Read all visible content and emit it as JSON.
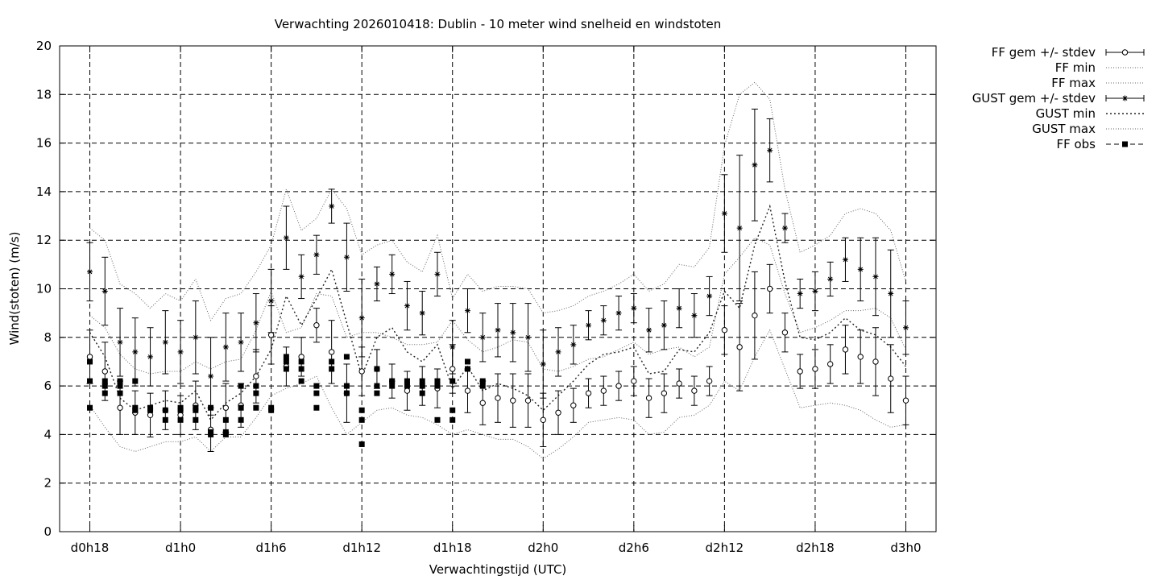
{
  "chart_data": {
    "type": "line",
    "title": "Verwachting 2026010418: Dublin - 10 meter wind snelheid en windstoten",
    "xlabel": "Verwachtingstijd (UTC)",
    "ylabel": "Wind(stoten) (m/s)",
    "ylim": [
      0,
      20
    ],
    "xlim_hours": [
      -2,
      56
    ],
    "grid": true,
    "legend_position": "outside-right-top",
    "x_ticks": [
      {
        "hour": 0,
        "label": "d0h18"
      },
      {
        "hour": 6,
        "label": "d1h0"
      },
      {
        "hour": 12,
        "label": "d1h6"
      },
      {
        "hour": 18,
        "label": "d1h12"
      },
      {
        "hour": 24,
        "label": "d1h18"
      },
      {
        "hour": 30,
        "label": "d2h0"
      },
      {
        "hour": 36,
        "label": "d2h6"
      },
      {
        "hour": 42,
        "label": "d2h12"
      },
      {
        "hour": 48,
        "label": "d2h18"
      },
      {
        "hour": 54,
        "label": "d3h0"
      }
    ],
    "y_ticks": [
      0,
      2,
      4,
      6,
      8,
      10,
      12,
      14,
      16,
      18,
      20
    ],
    "legend": [
      {
        "key": "ff_mean",
        "label": "FF gem +/- stdev"
      },
      {
        "key": "ff_min",
        "label": "FF min"
      },
      {
        "key": "ff_max",
        "label": "FF max"
      },
      {
        "key": "gust_mean",
        "label": "GUST gem +/- stdev"
      },
      {
        "key": "gust_min",
        "label": "GUST min"
      },
      {
        "key": "gust_max",
        "label": "GUST max"
      },
      {
        "key": "ff_obs",
        "label": "FF obs"
      }
    ],
    "x_hours": [
      0,
      1,
      2,
      3,
      4,
      5,
      6,
      7,
      8,
      9,
      10,
      11,
      12,
      13,
      14,
      15,
      16,
      17,
      18,
      19,
      20,
      21,
      22,
      23,
      24,
      25,
      26,
      27,
      28,
      29,
      30,
      31,
      32,
      33,
      34,
      35,
      36,
      37,
      38,
      39,
      40,
      41,
      42,
      43,
      44,
      45,
      46,
      47,
      48,
      49,
      50,
      51,
      52,
      53,
      54
    ],
    "ff_mean": [
      7.2,
      6.6,
      5.1,
      4.9,
      4.8,
      5.0,
      4.8,
      5.2,
      4.2,
      5.1,
      5.2,
      6.4,
      8.1,
      6.8,
      7.2,
      8.5,
      7.4,
      5.7,
      6.6,
      6.7,
      6.2,
      5.8,
      6.0,
      5.9,
      6.7,
      5.8,
      5.3,
      5.5,
      5.4,
      5.4,
      4.6,
      4.9,
      5.2,
      5.7,
      5.8,
      6.0,
      6.2,
      5.5,
      5.7,
      6.1,
      5.8,
      6.2,
      8.3,
      7.6,
      8.9,
      10.0,
      8.2,
      6.6,
      6.7,
      6.9,
      7.5,
      7.2,
      7.0,
      6.3,
      5.4
    ],
    "ff_std": [
      1.1,
      1.2,
      1.1,
      0.9,
      0.9,
      0.8,
      0.8,
      1.0,
      0.9,
      1.0,
      0.9,
      1.1,
      1.2,
      0.8,
      0.8,
      0.7,
      1.3,
      1.2,
      1.0,
      0.8,
      0.7,
      0.8,
      0.8,
      0.8,
      1.0,
      0.9,
      0.9,
      1.0,
      1.1,
      1.1,
      1.1,
      0.9,
      0.7,
      0.6,
      0.6,
      0.6,
      0.6,
      0.8,
      0.8,
      0.6,
      0.6,
      0.6,
      1.0,
      1.8,
      1.8,
      1.0,
      0.8,
      0.7,
      0.8,
      0.8,
      1.0,
      1.1,
      1.4,
      1.4,
      1.0
    ],
    "gust_mean": [
      10.7,
      9.9,
      7.8,
      7.4,
      7.2,
      7.8,
      7.4,
      8.0,
      6.4,
      7.6,
      7.8,
      8.6,
      9.5,
      12.1,
      10.5,
      11.4,
      13.4,
      11.3,
      8.8,
      10.2,
      10.6,
      9.3,
      9.0,
      10.6,
      7.6,
      9.1,
      8.0,
      8.3,
      8.2,
      8.0,
      6.9,
      7.4,
      7.7,
      8.5,
      8.7,
      9.0,
      9.2,
      8.3,
      8.5,
      9.2,
      8.9,
      9.7,
      13.1,
      12.5,
      15.1,
      15.7,
      12.5,
      9.8,
      9.9,
      10.4,
      11.2,
      10.8,
      10.5,
      9.8,
      8.4
    ],
    "gust_std": [
      1.2,
      1.4,
      1.4,
      1.4,
      1.2,
      1.3,
      1.3,
      1.5,
      1.6,
      1.4,
      1.2,
      1.2,
      1.3,
      1.3,
      0.9,
      0.8,
      0.7,
      1.4,
      1.6,
      0.7,
      0.8,
      1.0,
      0.9,
      0.9,
      1.1,
      0.9,
      1.0,
      1.1,
      1.2,
      1.4,
      1.4,
      1.0,
      0.8,
      0.6,
      0.6,
      0.7,
      0.6,
      0.9,
      1.0,
      0.8,
      0.9,
      0.8,
      1.6,
      3.0,
      2.3,
      1.3,
      0.6,
      0.6,
      0.8,
      0.7,
      0.9,
      1.3,
      1.6,
      1.8,
      1.1
    ],
    "ff_min": [
      5.2,
      4.3,
      3.5,
      3.3,
      3.5,
      3.7,
      3.7,
      3.9,
      3.3,
      3.9,
      3.9,
      4.7,
      5.6,
      5.9,
      6.1,
      6.4,
      5.1,
      4.0,
      4.5,
      5.0,
      5.1,
      4.8,
      4.7,
      4.4,
      4.0,
      4.2,
      4.0,
      3.8,
      3.8,
      3.5,
      3.0,
      3.4,
      3.9,
      4.5,
      4.6,
      4.7,
      4.6,
      4.0,
      4.1,
      4.7,
      4.8,
      5.2,
      6.2,
      5.8,
      7.2,
      8.3,
      6.7,
      5.1,
      5.2,
      5.3,
      5.2,
      5.0,
      4.6,
      4.3,
      4.4
    ],
    "ff_max": [
      8.9,
      8.4,
      7.3,
      6.7,
      6.5,
      6.6,
      6.6,
      7.0,
      6.7,
      7.0,
      7.1,
      8.3,
      9.9,
      8.2,
      8.4,
      9.8,
      9.7,
      8.0,
      8.2,
      8.2,
      8.0,
      7.7,
      7.7,
      7.8,
      8.7,
      7.9,
      7.4,
      7.6,
      7.9,
      7.8,
      6.7,
      6.6,
      6.8,
      7.1,
      7.2,
      7.5,
      7.8,
      7.3,
      7.5,
      7.6,
      7.2,
      7.6,
      10.6,
      11.3,
      12.1,
      11.8,
      9.8,
      8.2,
      8.4,
      8.7,
      9.1,
      9.1,
      9.2,
      8.8,
      7.5
    ],
    "gust_min": [
      8.2,
      7.2,
      5.5,
      5.0,
      5.2,
      5.4,
      5.3,
      5.8,
      4.6,
      5.3,
      5.7,
      6.4,
      7.5,
      9.7,
      8.5,
      9.6,
      10.8,
      8.6,
      6.4,
      8.0,
      8.4,
      7.4,
      7.0,
      7.7,
      5.9,
      6.8,
      5.8,
      6.1,
      5.9,
      5.6,
      5.0,
      5.6,
      6.2,
      6.9,
      7.3,
      7.4,
      7.6,
      6.5,
      6.6,
      7.5,
      7.4,
      8.2,
      9.9,
      9.2,
      11.8,
      13.4,
      10.3,
      8.0,
      7.9,
      8.2,
      8.8,
      8.3,
      8.1,
      7.6,
      6.8
    ],
    "gust_max": [
      12.5,
      12.0,
      10.2,
      9.8,
      9.2,
      9.8,
      9.5,
      10.4,
      8.7,
      9.6,
      9.8,
      10.7,
      11.8,
      14.1,
      12.4,
      12.9,
      14.1,
      13.3,
      11.4,
      11.8,
      12.0,
      11.1,
      10.7,
      12.2,
      9.6,
      10.6,
      9.9,
      10.1,
      10.1,
      10.0,
      9.0,
      9.1,
      9.3,
      9.7,
      9.9,
      10.2,
      10.6,
      9.9,
      10.2,
      11.0,
      10.9,
      11.7,
      15.9,
      18.0,
      18.5,
      17.8,
      14.1,
      11.5,
      11.8,
      12.2,
      13.1,
      13.3,
      13.1,
      12.4,
      10.3
    ],
    "ff_obs": [
      [
        0,
        5.1
      ],
      [
        0,
        6.2
      ],
      [
        0,
        7.0
      ],
      [
        1,
        5.7
      ],
      [
        1,
        6.0
      ],
      [
        1,
        6.2
      ],
      [
        2,
        5.7
      ],
      [
        2,
        6.0
      ],
      [
        2,
        6.2
      ],
      [
        3,
        5.0
      ],
      [
        3,
        5.1
      ],
      [
        3,
        6.2
      ],
      [
        4,
        5.0
      ],
      [
        4,
        5.1
      ],
      [
        5,
        4.6
      ],
      [
        5,
        5.0
      ],
      [
        6,
        4.6
      ],
      [
        6,
        5.0
      ],
      [
        6,
        5.1
      ],
      [
        7,
        4.6
      ],
      [
        7,
        5.0
      ],
      [
        7,
        5.1
      ],
      [
        8,
        4.0
      ],
      [
        8,
        4.1
      ],
      [
        8,
        5.1
      ],
      [
        9,
        4.0
      ],
      [
        9,
        4.1
      ],
      [
        9,
        4.6
      ],
      [
        10,
        4.6
      ],
      [
        10,
        5.1
      ],
      [
        10,
        6.0
      ],
      [
        11,
        5.1
      ],
      [
        11,
        5.7
      ],
      [
        11,
        6.0
      ],
      [
        12,
        5.0
      ],
      [
        12,
        5.1
      ],
      [
        13,
        6.7
      ],
      [
        13,
        7.0
      ],
      [
        13,
        7.2
      ],
      [
        14,
        6.2
      ],
      [
        14,
        6.7
      ],
      [
        14,
        7.0
      ],
      [
        15,
        5.1
      ],
      [
        15,
        5.7
      ],
      [
        15,
        6.0
      ],
      [
        16,
        6.7
      ],
      [
        16,
        7.0
      ],
      [
        17,
        5.7
      ],
      [
        17,
        6.0
      ],
      [
        17,
        7.2
      ],
      [
        18,
        3.6
      ],
      [
        18,
        4.6
      ],
      [
        18,
        5.0
      ],
      [
        19,
        5.7
      ],
      [
        19,
        6.0
      ],
      [
        19,
        6.7
      ],
      [
        20,
        6.0
      ],
      [
        20,
        6.2
      ],
      [
        21,
        6.0
      ],
      [
        21,
        6.2
      ],
      [
        22,
        5.7
      ],
      [
        22,
        6.0
      ],
      [
        22,
        6.2
      ],
      [
        23,
        4.6
      ],
      [
        23,
        6.0
      ],
      [
        23,
        6.2
      ],
      [
        24,
        4.6
      ],
      [
        24,
        5.0
      ],
      [
        24,
        6.2
      ],
      [
        25,
        6.7
      ],
      [
        25,
        7.0
      ],
      [
        26,
        6.0
      ],
      [
        26,
        6.2
      ]
    ]
  }
}
